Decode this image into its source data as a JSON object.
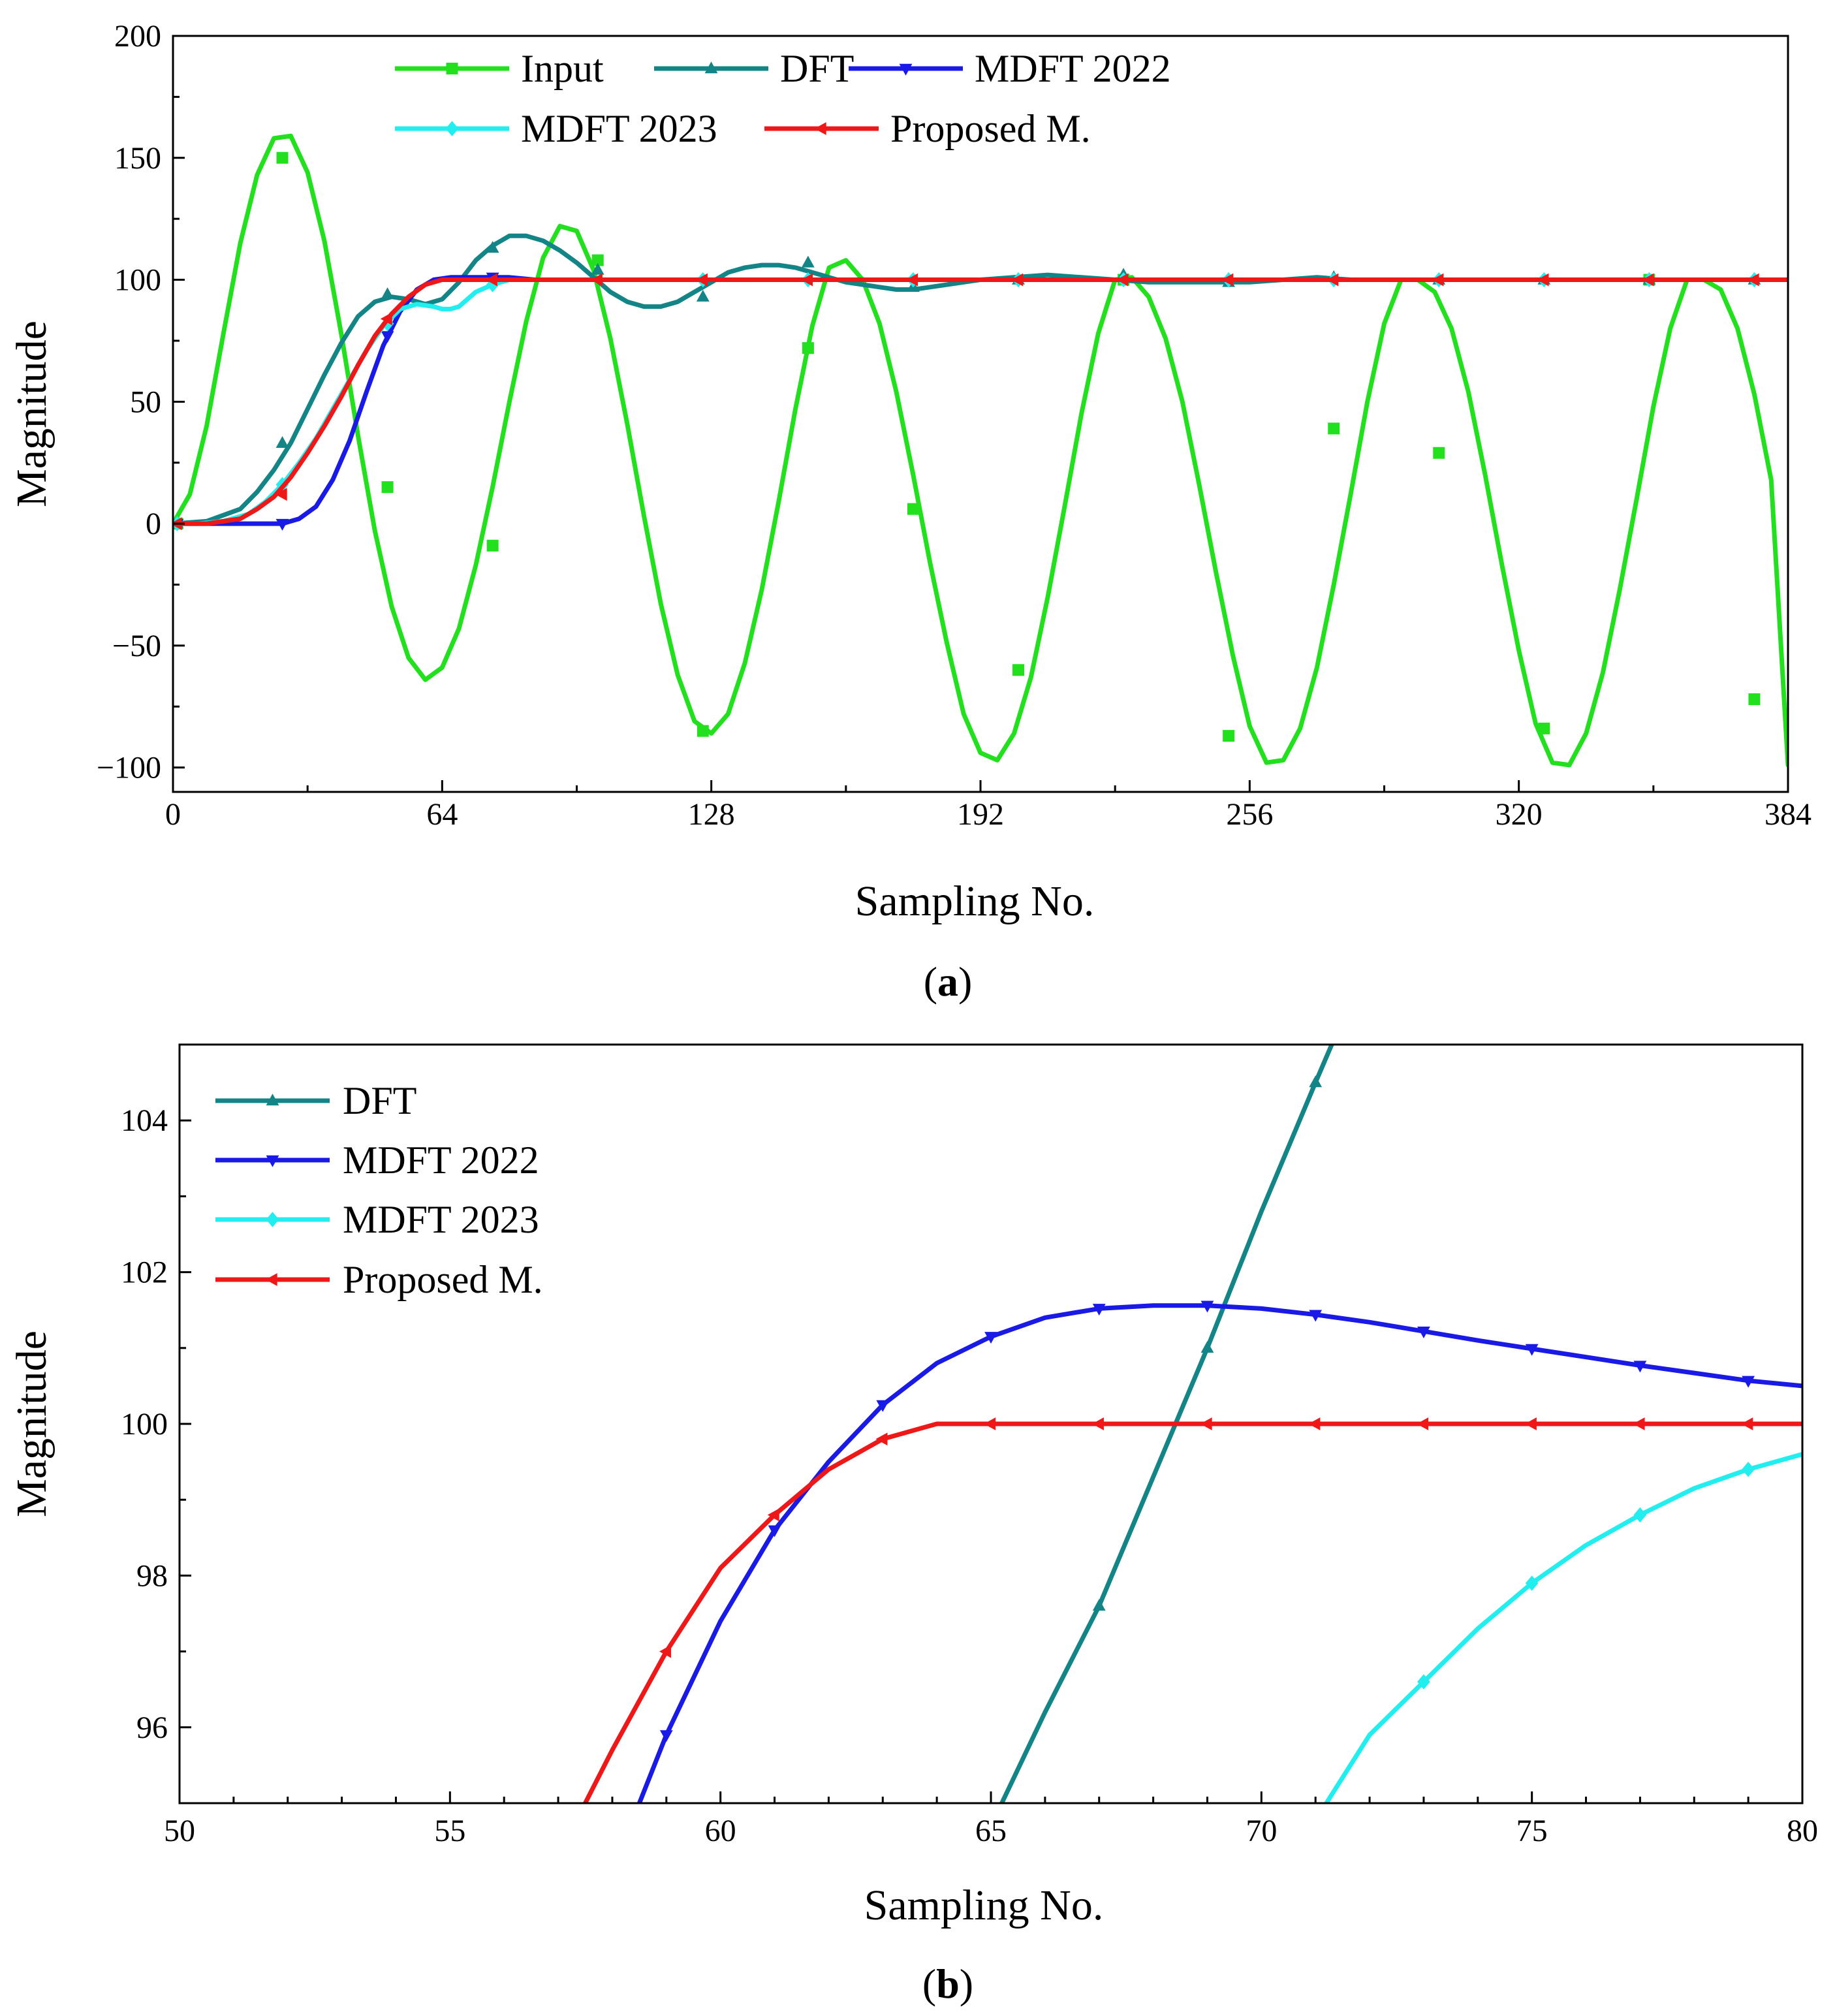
{
  "colors": {
    "Input": "#22e01e",
    "DFT": "#138586",
    "MDFT 2022": "#1a1ae6",
    "MDFT 2023": "#22eef0",
    "Proposed M.": "#ee1818"
  },
  "chart_data": [
    {
      "type": "line",
      "panel_label": "a",
      "xlabel": "Sampling No.",
      "ylabel": "Magnitude",
      "xlim": [
        0,
        384
      ],
      "ylim": [
        -110,
        200
      ],
      "xticks": [
        0,
        64,
        128,
        192,
        256,
        320,
        384
      ],
      "xtick_labels": [
        "0",
        "64",
        "128",
        "192",
        "256",
        "320",
        "384"
      ],
      "yticks": [
        -100,
        -50,
        0,
        50,
        100,
        150,
        200
      ],
      "ytick_labels": [
        "−100",
        "−50",
        "0",
        "50",
        "100",
        "150",
        "200"
      ],
      "legend": {
        "placement": "top",
        "columns": 3
      },
      "series": [
        {
          "name": "Input",
          "marker": "square",
          "x": [
            0,
            4,
            8,
            12,
            16,
            20,
            24,
            28,
            32,
            36,
            40,
            44,
            48,
            52,
            56,
            60,
            64,
            68,
            72,
            76,
            80,
            84,
            88,
            92,
            96,
            100,
            104,
            108,
            112,
            116,
            120,
            124,
            128,
            132,
            136,
            140,
            144,
            148,
            152,
            156,
            160,
            164,
            168,
            172,
            176,
            180,
            184,
            188,
            192,
            196,
            200,
            204,
            208,
            212,
            216,
            220,
            224,
            228,
            232,
            236,
            240,
            244,
            248,
            252,
            256,
            260,
            264,
            268,
            272,
            276,
            280,
            284,
            288,
            292,
            296,
            300,
            304,
            308,
            312,
            316,
            320,
            324,
            328,
            332,
            336,
            340,
            344,
            348,
            352,
            356,
            360,
            364,
            368,
            372,
            376,
            380,
            384
          ],
          "values": [
            0,
            12,
            40,
            78,
            115,
            143,
            158,
            159,
            144,
            116,
            78,
            36,
            -3,
            -34,
            -55,
            -64,
            -59,
            -43,
            -17,
            15,
            50,
            83,
            109,
            122,
            120,
            104,
            76,
            41,
            3,
            -33,
            -62,
            -81,
            -86,
            -78,
            -57,
            -27,
            9,
            47,
            81,
            105,
            108,
            100,
            82,
            54,
            20,
            -16,
            -49,
            -78,
            -94,
            -97,
            -86,
            -63,
            -30,
            7,
            45,
            78,
            100,
            101,
            93,
            76,
            50,
            16,
            -20,
            -54,
            -83,
            -98,
            -97,
            -84,
            -59,
            -25,
            12,
            50,
            82,
            100,
            100,
            95,
            80,
            54,
            20,
            -17,
            -52,
            -82,
            -98,
            -99,
            -86,
            -61,
            -27,
            10,
            48,
            80,
            100,
            100,
            96,
            80,
            53,
            18,
            -99
          ],
          "marker_points": [
            [
              1,
              0
            ],
            [
              26,
              150
            ],
            [
              51,
              15
            ],
            [
              76,
              -9
            ],
            [
              101,
              108
            ],
            [
              126,
              -85
            ],
            [
              151,
              72
            ],
            [
              176,
              6
            ],
            [
              201,
              -60
            ],
            [
              226,
              100
            ],
            [
              251,
              -87
            ],
            [
              276,
              39
            ],
            [
              301,
              29
            ],
            [
              326,
              -84
            ],
            [
              351,
              100
            ],
            [
              376,
              -72
            ]
          ]
        },
        {
          "name": "DFT",
          "marker": "triangle-up",
          "x": [
            0,
            8,
            16,
            20,
            24,
            28,
            32,
            36,
            40,
            44,
            48,
            52,
            56,
            60,
            64,
            68,
            72,
            76,
            80,
            84,
            88,
            92,
            96,
            100,
            104,
            108,
            112,
            116,
            120,
            124,
            128,
            132,
            136,
            140,
            144,
            148,
            152,
            156,
            160,
            164,
            168,
            172,
            176,
            180,
            184,
            192,
            200,
            208,
            216,
            224,
            232,
            240,
            248,
            256,
            264,
            272,
            280,
            288,
            296,
            304,
            320,
            336,
            352,
            368,
            384
          ],
          "values": [
            0,
            1,
            6,
            13,
            22,
            33,
            47,
            61,
            74,
            85,
            91,
            93,
            92,
            90,
            92,
            99,
            108,
            114,
            118,
            118,
            116,
            112,
            107,
            101,
            95,
            91,
            89,
            89,
            91,
            95,
            99,
            103,
            105,
            106,
            106,
            105,
            103,
            101,
            99,
            98,
            97,
            96,
            96,
            97,
            98,
            100,
            101,
            102,
            101,
            100,
            99,
            99,
            99,
            99,
            100,
            101,
            100,
            100,
            100,
            100,
            100,
            100,
            100,
            100,
            100
          ],
          "marker_points": [
            [
              1,
              0
            ],
            [
              26,
              33
            ],
            [
              51,
              94
            ],
            [
              76,
              113
            ],
            [
              101,
              104
            ],
            [
              126,
              93
            ],
            [
              151,
              107
            ],
            [
              176,
              97
            ],
            [
              201,
              100
            ],
            [
              226,
              102
            ],
            [
              251,
              99
            ],
            [
              276,
              101
            ],
            [
              301,
              100
            ],
            [
              326,
              100
            ],
            [
              351,
              100
            ],
            [
              376,
              100
            ]
          ]
        },
        {
          "name": "MDFT 2022",
          "marker": "triangle-down",
          "x": [
            0,
            26,
            30,
            34,
            38,
            42,
            46,
            50,
            54,
            58,
            62,
            66,
            70,
            74,
            80,
            86,
            384
          ],
          "values": [
            0,
            0,
            2,
            7,
            18,
            34,
            54,
            73,
            87,
            96,
            100,
            101,
            101,
            101,
            101,
            100,
            100
          ],
          "marker_points": [
            [
              1,
              0
            ],
            [
              26,
              0
            ],
            [
              51,
              77
            ],
            [
              76,
              101
            ]
          ]
        },
        {
          "name": "MDFT 2023",
          "marker": "diamond",
          "x": [
            0,
            6,
            12,
            18,
            22,
            26,
            30,
            34,
            38,
            42,
            46,
            50,
            54,
            58,
            62,
            64,
            66,
            68,
            70,
            72,
            76,
            80,
            86,
            384
          ],
          "values": [
            0,
            0,
            1,
            4,
            9,
            16,
            25,
            35,
            47,
            59,
            71,
            81,
            88,
            90,
            89,
            88,
            88,
            89,
            92,
            95,
            98,
            100,
            100,
            100
          ],
          "marker_points": [
            [
              1,
              0
            ],
            [
              26,
              16
            ],
            [
              51,
              82
            ],
            [
              76,
              98
            ],
            [
              126,
              100
            ],
            [
              151,
              100
            ],
            [
              176,
              100
            ],
            [
              201,
              100
            ],
            [
              226,
              100
            ],
            [
              251,
              100
            ],
            [
              276,
              100
            ],
            [
              301,
              100
            ],
            [
              326,
              100
            ],
            [
              351,
              100
            ],
            [
              376,
              100
            ]
          ]
        },
        {
          "name": "Proposed M.",
          "marker": "triangle-left",
          "x": [
            0,
            8,
            16,
            20,
            24,
            28,
            32,
            36,
            40,
            44,
            48,
            52,
            56,
            60,
            64,
            384
          ],
          "values": [
            0,
            0,
            2,
            6,
            11,
            19,
            29,
            40,
            52,
            65,
            77,
            86,
            93,
            98,
            100,
            100
          ],
          "marker_points": [
            [
              1,
              0
            ],
            [
              26,
              12
            ],
            [
              51,
              84
            ],
            [
              76,
              100
            ],
            [
              101,
              100
            ],
            [
              126,
              100
            ],
            [
              151,
              100
            ],
            [
              176,
              100
            ],
            [
              201,
              100
            ],
            [
              226,
              100
            ],
            [
              251,
              100
            ],
            [
              276,
              100
            ],
            [
              301,
              100
            ],
            [
              326,
              100
            ],
            [
              351,
              100
            ],
            [
              376,
              100
            ]
          ]
        }
      ]
    },
    {
      "type": "line",
      "panel_label": "b",
      "xlabel": "Sampling No.",
      "ylabel": "Magnitude",
      "xlim": [
        50,
        80
      ],
      "ylim": [
        95,
        105
      ],
      "xticks": [
        50,
        55,
        60,
        65,
        70,
        75,
        80
      ],
      "xtick_labels": [
        "50",
        "55",
        "60",
        "65",
        "70",
        "75",
        "80"
      ],
      "yticks": [
        96,
        98,
        100,
        102,
        104
      ],
      "ytick_labels": [
        "96",
        "98",
        "100",
        "102",
        "104"
      ],
      "legend": {
        "placement": "top-left",
        "columns": 1
      },
      "series": [
        {
          "name": "DFT",
          "marker": "triangle-up",
          "x": [
            65.2,
            66,
            67,
            68,
            69,
            70,
            71,
            71.3
          ],
          "values": [
            95.0,
            96.2,
            97.6,
            99.3,
            101.0,
            102.8,
            104.5,
            105.0
          ],
          "marker_points": [
            [
              67,
              97.6
            ],
            [
              69,
              101.0
            ],
            [
              71,
              104.5
            ]
          ]
        },
        {
          "name": "MDFT 2022",
          "marker": "triangle-down",
          "x": [
            58.5,
            59,
            60,
            61,
            62,
            63,
            64,
            65,
            66,
            67,
            68,
            69,
            70,
            71,
            72,
            73,
            74,
            75,
            76,
            77,
            78,
            79,
            80
          ],
          "values": [
            95.0,
            95.9,
            97.4,
            98.6,
            99.5,
            100.25,
            100.8,
            101.15,
            101.4,
            101.52,
            101.56,
            101.56,
            101.52,
            101.44,
            101.34,
            101.22,
            101.1,
            100.99,
            100.88,
            100.77,
            100.67,
            100.57,
            100.5
          ],
          "marker_points": [
            [
              59,
              95.9
            ],
            [
              61,
              98.6
            ],
            [
              63,
              100.25
            ],
            [
              65,
              101.15
            ],
            [
              67,
              101.52
            ],
            [
              69,
              101.56
            ],
            [
              71,
              101.44
            ],
            [
              73,
              101.22
            ],
            [
              75,
              100.99
            ],
            [
              77,
              100.77
            ],
            [
              79,
              100.57
            ]
          ]
        },
        {
          "name": "MDFT 2023",
          "marker": "diamond",
          "x": [
            71.2,
            72,
            73,
            74,
            75,
            76,
            77,
            78,
            79,
            80
          ],
          "values": [
            95.0,
            95.9,
            96.6,
            97.3,
            97.9,
            98.4,
            98.8,
            99.15,
            99.4,
            99.6
          ],
          "marker_points": [
            [
              73,
              96.6
            ],
            [
              75,
              97.9
            ],
            [
              77,
              98.8
            ],
            [
              79,
              99.4
            ]
          ]
        },
        {
          "name": "Proposed M.",
          "marker": "triangle-left",
          "x": [
            57.5,
            58,
            59,
            60,
            61,
            62,
            63,
            64,
            65,
            70,
            75,
            80
          ],
          "values": [
            95.0,
            95.7,
            97.0,
            98.1,
            98.8,
            99.4,
            99.8,
            100.0,
            100.0,
            100.0,
            100.0,
            100.0
          ],
          "marker_points": [
            [
              59,
              97.0
            ],
            [
              61,
              98.8
            ],
            [
              63,
              99.8
            ],
            [
              65,
              100.0
            ],
            [
              67,
              100.0
            ],
            [
              69,
              100.0
            ],
            [
              71,
              100.0
            ],
            [
              73,
              100.0
            ],
            [
              75,
              100.0
            ],
            [
              77,
              100.0
            ],
            [
              79,
              100.0
            ]
          ]
        }
      ]
    }
  ]
}
